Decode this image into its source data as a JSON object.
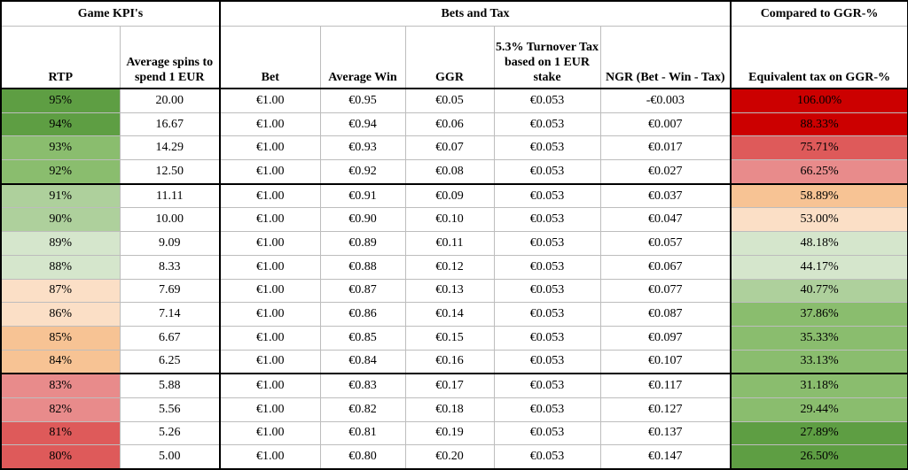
{
  "groups": {
    "game_kpis": "Game KPI's",
    "bets_and_tax": "Bets and Tax",
    "compared": "Compared to GGR-%"
  },
  "headers": {
    "rtp": "RTP",
    "avg_spins": "Average spins to spend 1 EUR",
    "bet": "Bet",
    "avg_win": "Average Win",
    "ggr": "GGR",
    "turnover_tax": "5.3% Turnover Tax based on 1 EUR stake",
    "ngr": "NGR (Bet - Win - Tax)",
    "equiv_tax": "Equivalent tax on GGR-%"
  },
  "rows": [
    {
      "rtp": "95%",
      "spins": "20.00",
      "bet": "€1.00",
      "win": "€0.95",
      "ggr": "€0.05",
      "tax": "€0.053",
      "ngr": "-€0.003",
      "equiv": "106.00%",
      "rtp_color": "#5e9e43",
      "equiv_color": "#cc0000"
    },
    {
      "rtp": "94%",
      "spins": "16.67",
      "bet": "€1.00",
      "win": "€0.94",
      "ggr": "€0.06",
      "tax": "€0.053",
      "ngr": "€0.007",
      "equiv": "88.33%",
      "rtp_color": "#5e9e43",
      "equiv_color": "#cc0000"
    },
    {
      "rtp": "93%",
      "spins": "14.29",
      "bet": "€1.00",
      "win": "€0.93",
      "ggr": "€0.07",
      "tax": "€0.053",
      "ngr": "€0.017",
      "equiv": "75.71%",
      "rtp_color": "#8abd6e",
      "equiv_color": "#de5a5a"
    },
    {
      "rtp": "92%",
      "spins": "12.50",
      "bet": "€1.00",
      "win": "€0.92",
      "ggr": "€0.08",
      "tax": "€0.053",
      "ngr": "€0.027",
      "equiv": "66.25%",
      "rtp_color": "#8abd6e",
      "equiv_color": "#e88b8b"
    },
    {
      "rtp": "91%",
      "spins": "11.11",
      "bet": "€1.00",
      "win": "€0.91",
      "ggr": "€0.09",
      "tax": "€0.053",
      "ngr": "€0.037",
      "equiv": "58.89%",
      "rtp_color": "#aed09c",
      "equiv_color": "#f7c394"
    },
    {
      "rtp": "90%",
      "spins": "10.00",
      "bet": "€1.00",
      "win": "€0.90",
      "ggr": "€0.10",
      "tax": "€0.053",
      "ngr": "€0.047",
      "equiv": "53.00%",
      "rtp_color": "#aed09c",
      "equiv_color": "#fbdfc6"
    },
    {
      "rtp": "89%",
      "spins": "9.09",
      "bet": "€1.00",
      "win": "€0.89",
      "ggr": "€0.11",
      "tax": "€0.053",
      "ngr": "€0.057",
      "equiv": "48.18%",
      "rtp_color": "#d5e6cc",
      "equiv_color": "#d5e6cc"
    },
    {
      "rtp": "88%",
      "spins": "8.33",
      "bet": "€1.00",
      "win": "€0.88",
      "ggr": "€0.12",
      "tax": "€0.053",
      "ngr": "€0.067",
      "equiv": "44.17%",
      "rtp_color": "#d5e6cc",
      "equiv_color": "#d5e6cc"
    },
    {
      "rtp": "87%",
      "spins": "7.69",
      "bet": "€1.00",
      "win": "€0.87",
      "ggr": "€0.13",
      "tax": "€0.053",
      "ngr": "€0.077",
      "equiv": "40.77%",
      "rtp_color": "#fbdfc6",
      "equiv_color": "#aed09c"
    },
    {
      "rtp": "86%",
      "spins": "7.14",
      "bet": "€1.00",
      "win": "€0.86",
      "ggr": "€0.14",
      "tax": "€0.053",
      "ngr": "€0.087",
      "equiv": "37.86%",
      "rtp_color": "#fbdfc6",
      "equiv_color": "#8abd6e"
    },
    {
      "rtp": "85%",
      "spins": "6.67",
      "bet": "€1.00",
      "win": "€0.85",
      "ggr": "€0.15",
      "tax": "€0.053",
      "ngr": "€0.097",
      "equiv": "35.33%",
      "rtp_color": "#f7c394",
      "equiv_color": "#8abd6e"
    },
    {
      "rtp": "84%",
      "spins": "6.25",
      "bet": "€1.00",
      "win": "€0.84",
      "ggr": "€0.16",
      "tax": "€0.053",
      "ngr": "€0.107",
      "equiv": "33.13%",
      "rtp_color": "#f7c394",
      "equiv_color": "#8abd6e"
    },
    {
      "rtp": "83%",
      "spins": "5.88",
      "bet": "€1.00",
      "win": "€0.83",
      "ggr": "€0.17",
      "tax": "€0.053",
      "ngr": "€0.117",
      "equiv": "31.18%",
      "rtp_color": "#e88b8b",
      "equiv_color": "#8abd6e"
    },
    {
      "rtp": "82%",
      "spins": "5.56",
      "bet": "€1.00",
      "win": "€0.82",
      "ggr": "€0.18",
      "tax": "€0.053",
      "ngr": "€0.127",
      "equiv": "29.44%",
      "rtp_color": "#e88b8b",
      "equiv_color": "#8abd6e"
    },
    {
      "rtp": "81%",
      "spins": "5.26",
      "bet": "€1.00",
      "win": "€0.81",
      "ggr": "€0.19",
      "tax": "€0.053",
      "ngr": "€0.137",
      "equiv": "27.89%",
      "rtp_color": "#de5a5a",
      "equiv_color": "#5e9e43"
    },
    {
      "rtp": "80%",
      "spins": "5.00",
      "bet": "€1.00",
      "win": "€0.80",
      "ggr": "€0.20",
      "tax": "€0.053",
      "ngr": "€0.147",
      "equiv": "26.50%",
      "rtp_color": "#de5a5a",
      "equiv_color": "#5e9e43"
    }
  ]
}
